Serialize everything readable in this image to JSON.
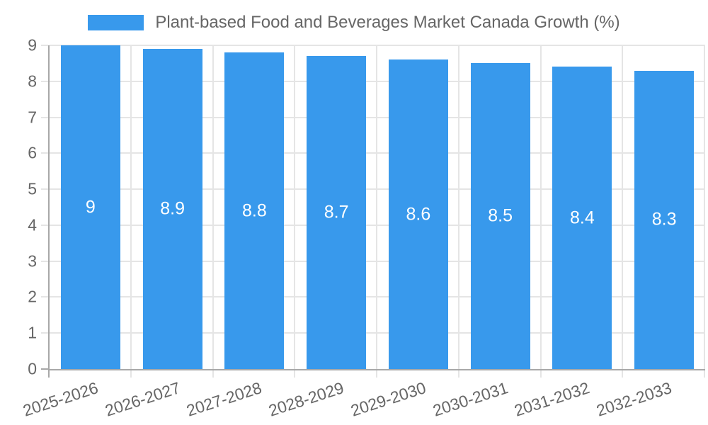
{
  "chart_data": {
    "type": "bar",
    "title": "Plant-based Food and Beverages Market Canada Growth (%)",
    "categories": [
      "2025-2026",
      "2026-2027",
      "2027-2028",
      "2028-2029",
      "2029-2030",
      "2030-2031",
      "2031-2032",
      "2032-2033"
    ],
    "values": [
      9,
      8.9,
      8.8,
      8.7,
      8.6,
      8.5,
      8.4,
      8.3
    ],
    "value_labels": [
      "9",
      "8.9",
      "8.8",
      "8.7",
      "8.6",
      "8.5",
      "8.4",
      "8.3"
    ],
    "series": [
      {
        "name": "Plant-based Food and Beverages Market Canada Growth (%)",
        "values": [
          9,
          8.9,
          8.8,
          8.7,
          8.6,
          8.5,
          8.4,
          8.3
        ]
      }
    ],
    "xlabel": "",
    "ylabel": "",
    "ylim": [
      0,
      9
    ],
    "yticks": [
      0,
      1,
      2,
      3,
      4,
      5,
      6,
      7,
      8,
      9
    ],
    "grid": true,
    "legend_position": "top",
    "value_label_position": "center-of-bar"
  },
  "colors": {
    "bar": "#3899ec",
    "text": "#666666",
    "grid": "#e5e5e5",
    "axis": "#a8a8a8",
    "value_label": "#ffffff",
    "background": "#ffffff"
  }
}
